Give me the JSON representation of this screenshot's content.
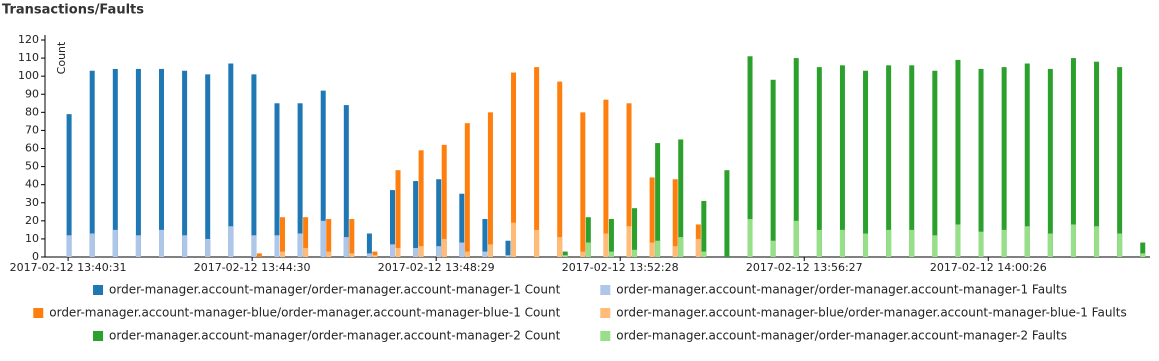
{
  "chart_data": {
    "type": "bar",
    "title": "Transactions/Faults",
    "y_label": "Count",
    "x": [
      "2017-02-12 13:40:31",
      "2017-02-12 13:41:01",
      "2017-02-12 13:41:31",
      "2017-02-12 13:42:01",
      "2017-02-12 13:42:31",
      "2017-02-12 13:43:01",
      "2017-02-12 13:43:31",
      "2017-02-12 13:44:01",
      "2017-02-12 13:44:31",
      "2017-02-12 13:45:01",
      "2017-02-12 13:45:31",
      "2017-02-12 13:46:01",
      "2017-02-12 13:46:31",
      "2017-02-12 13:47:01",
      "2017-02-12 13:47:31",
      "2017-02-12 13:48:01",
      "2017-02-12 13:48:31",
      "2017-02-12 13:49:01",
      "2017-02-12 13:49:31",
      "2017-02-12 13:50:01",
      "2017-02-12 13:50:31",
      "2017-02-12 13:51:01",
      "2017-02-12 13:51:31",
      "2017-02-12 13:52:01",
      "2017-02-12 13:52:31",
      "2017-02-12 13:53:01",
      "2017-02-12 13:53:31",
      "2017-02-12 13:54:01",
      "2017-02-12 13:54:31",
      "2017-02-12 13:55:01",
      "2017-02-12 13:55:31",
      "2017-02-12 13:56:01",
      "2017-02-12 13:56:31",
      "2017-02-12 13:57:01",
      "2017-02-12 13:57:31",
      "2017-02-12 13:58:01",
      "2017-02-12 13:58:31",
      "2017-02-12 13:59:01",
      "2017-02-12 13:59:31",
      "2017-02-12 14:00:01",
      "2017-02-12 14:00:31",
      "2017-02-12 14:01:01",
      "2017-02-12 14:01:31",
      "2017-02-12 14:02:01",
      "2017-02-12 14:02:31",
      "2017-02-12 14:03:01",
      "2017-02-12 14:03:31"
    ],
    "xlim": [
      "2017-02-12 13:40:01",
      "2017-02-12 14:03:56"
    ],
    "xticks": [
      "2017-02-12 13:40:31",
      "2017-02-12 13:44:30",
      "2017-02-12 13:48:29",
      "2017-02-12 13:52:28",
      "2017-02-12 13:56:27",
      "2017-02-12 14:00:26"
    ],
    "ylim": [
      0,
      120
    ],
    "yticks": [
      0,
      10,
      20,
      30,
      40,
      50,
      60,
      70,
      80,
      90,
      100,
      110,
      120
    ],
    "series": [
      {
        "name": "order-manager.account-manager/order-manager.account-manager-1 Count",
        "color": "#1f77b4",
        "values": [
          79,
          103,
          104,
          104,
          104,
          103,
          101,
          107,
          101,
          85,
          85,
          92,
          84,
          13,
          37,
          42,
          43,
          35,
          21,
          9,
          null,
          null,
          null,
          null,
          null,
          null,
          null,
          null,
          null,
          null,
          null,
          null,
          null,
          null,
          null,
          null,
          null,
          null,
          null,
          null,
          null,
          null,
          null,
          null,
          null,
          null,
          null
        ]
      },
      {
        "name": "order-manager.account-manager/order-manager.account-manager-1 Faults",
        "color": "#aec7e8",
        "values": [
          12,
          13,
          15,
          12,
          15,
          12,
          10,
          17,
          12,
          12,
          13,
          20,
          11,
          2,
          7,
          5,
          6,
          8,
          3,
          1,
          null,
          null,
          null,
          null,
          null,
          null,
          null,
          null,
          null,
          null,
          null,
          null,
          null,
          null,
          null,
          null,
          null,
          null,
          null,
          null,
          null,
          null,
          null,
          null,
          null,
          null,
          null
        ]
      },
      {
        "name": "order-manager.account-manager-blue/order-manager.account-manager-blue-1 Count",
        "color": "#ff7f0e",
        "values": [
          null,
          null,
          null,
          null,
          null,
          null,
          null,
          null,
          2,
          22,
          22,
          21,
          21,
          3,
          48,
          59,
          62,
          74,
          80,
          102,
          105,
          97,
          80,
          87,
          85,
          44,
          43,
          18,
          null,
          null,
          null,
          null,
          null,
          null,
          null,
          null,
          null,
          null,
          null,
          null,
          null,
          null,
          null,
          null,
          null,
          null,
          null
        ]
      },
      {
        "name": "order-manager.account-manager-blue/order-manager.account-manager-blue-1 Faults",
        "color": "#ffbb78",
        "values": [
          null,
          null,
          null,
          null,
          null,
          null,
          null,
          null,
          0,
          3,
          5,
          3,
          2,
          1,
          5,
          6,
          10,
          3,
          7,
          19,
          15,
          11,
          3,
          13,
          17,
          8,
          6,
          10,
          null,
          null,
          null,
          null,
          null,
          null,
          null,
          null,
          null,
          null,
          null,
          null,
          null,
          null,
          null,
          null,
          null,
          null,
          null
        ]
      },
      {
        "name": "order-manager.account-manager/order-manager.account-manager-2 Count",
        "color": "#2ca02c",
        "values": [
          null,
          null,
          null,
          null,
          null,
          null,
          null,
          null,
          null,
          null,
          null,
          null,
          null,
          null,
          null,
          null,
          null,
          null,
          null,
          null,
          null,
          3,
          22,
          21,
          27,
          63,
          65,
          31,
          48,
          111,
          98,
          110,
          105,
          106,
          103,
          106,
          106,
          103,
          109,
          104,
          105,
          107,
          104,
          110,
          108,
          105,
          8
        ]
      },
      {
        "name": "order-manager.account-manager/order-manager.account-manager-2 Faults",
        "color": "#98df8a",
        "values": [
          null,
          null,
          null,
          null,
          null,
          null,
          null,
          null,
          null,
          null,
          null,
          null,
          null,
          null,
          null,
          null,
          null,
          null,
          null,
          null,
          null,
          1,
          8,
          3,
          4,
          9,
          11,
          3,
          0,
          21,
          9,
          20,
          15,
          15,
          13,
          15,
          15,
          12,
          18,
          14,
          15,
          17,
          13,
          18,
          17,
          13,
          2
        ]
      }
    ]
  }
}
